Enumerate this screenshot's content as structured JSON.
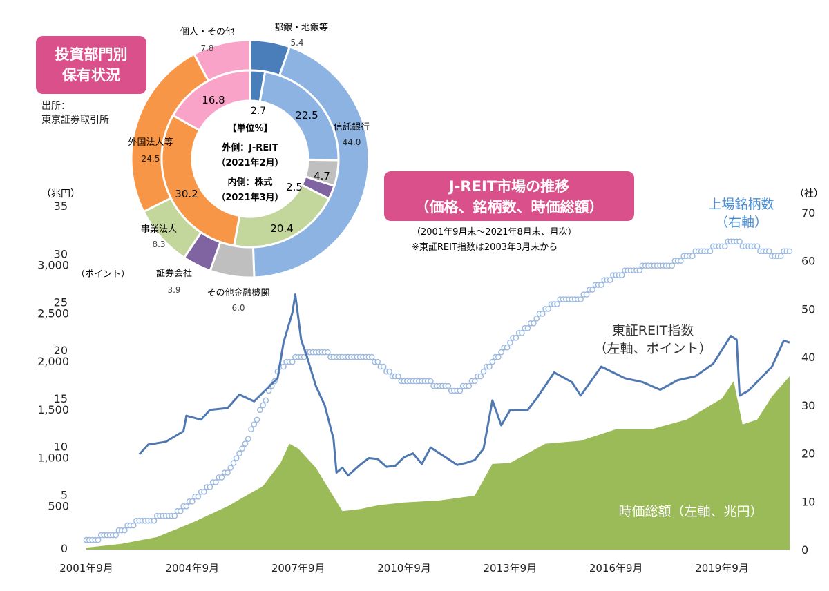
{
  "donut": {
    "title_lines": [
      "投資部門別",
      "保有状況"
    ],
    "source_lines": [
      "出所：",
      "東京証券取引所"
    ],
    "center_lines": [
      "【単位%】",
      "外側：J-REIT",
      "（2021年2月）",
      "内側：株式",
      "（2021年3月）"
    ],
    "colors": {
      "tosgin": "#4a7ebb",
      "shintaku": "#8db3e2",
      "sonota_kinyu": "#bfbfbf",
      "shoken": "#8064a2",
      "jigyo": "#c3d69b",
      "gaikoku": "#f79646",
      "kojin": "#f9a3c8"
    },
    "outer_labels": [
      {
        "name": "都銀・地銀等",
        "value": "5.4"
      },
      {
        "name": "信託銀行",
        "value": "44.0"
      },
      {
        "name": "その他金融機関",
        "value": "6.0"
      },
      {
        "name": "証券会社",
        "value": "3.9"
      },
      {
        "name": "事業法人",
        "value": "8.3"
      },
      {
        "name": "外国法人等",
        "value": "24.5"
      },
      {
        "name": "個人・その他",
        "value": "7.8"
      }
    ],
    "inner_labels": [
      "2.7",
      "22.5",
      "4.7",
      "2.5",
      "20.4",
      "30.2",
      "16.8"
    ]
  },
  "chart_titles": {
    "main_lines": [
      "J-REIT市場の推移",
      "（価格、銘柄数、時価総額）"
    ],
    "subtitle": "（2001年9月末～2021年8月末、月次）",
    "note": "※東証REIT指数は2003年3月末から"
  },
  "axes": {
    "left_unit": "（兆円）",
    "left_index_unit": "（ポイント）",
    "right_unit": "（社）",
    "left_outer_ticks": [
      "0",
      "5",
      "10",
      "15",
      "20",
      "25",
      "30",
      "35"
    ],
    "left_inner_ticks": [
      "500",
      "1,000",
      "1,500",
      "2,000",
      "2,500",
      "3,000"
    ],
    "right_ticks": [
      "0",
      "10",
      "20",
      "30",
      "40",
      "50",
      "60",
      "70"
    ],
    "x_ticks": [
      "2001年9月",
      "2004年9月",
      "2007年9月",
      "2010年9月",
      "2013年9月",
      "2016年9月",
      "2019年9月"
    ]
  },
  "series_labels": {
    "listed_lines": [
      "上場銘柄数",
      "（右軸）"
    ],
    "index_lines": [
      "東証REIT指数",
      "（左軸、ポイント）"
    ],
    "marketcap": "時価総額（左軸、兆円）"
  },
  "colors": {
    "index": "#4f77b0",
    "listed": "#9ab8e0",
    "marketcap": "#9bbb59",
    "title_box": "#d9508a"
  },
  "chart_data": {
    "type": "line",
    "x_range": [
      "2001-09",
      "2021-08"
    ],
    "y_left_range": [
      0,
      35
    ],
    "y_index_range": [
      0,
      3000
    ],
    "y_right_range": [
      0,
      70
    ],
    "series": [
      {
        "name": "東証REIT指数",
        "axis": "left-index",
        "points": [
          [
            "2003-03",
            990
          ],
          [
            "2003-06",
            1090
          ],
          [
            "2003-12",
            1120
          ],
          [
            "2004-06",
            1230
          ],
          [
            "2004-07",
            1390
          ],
          [
            "2004-12",
            1350
          ],
          [
            "2005-03",
            1450
          ],
          [
            "2005-09",
            1470
          ],
          [
            "2006-01",
            1610
          ],
          [
            "2006-06",
            1540
          ],
          [
            "2006-12",
            1720
          ],
          [
            "2007-02",
            1780
          ],
          [
            "2007-04",
            2150
          ],
          [
            "2007-07",
            2460
          ],
          [
            "2007-08",
            2650
          ],
          [
            "2007-10",
            2180
          ],
          [
            "2007-12",
            2000
          ],
          [
            "2008-03",
            1700
          ],
          [
            "2008-06",
            1500
          ],
          [
            "2008-09",
            1150
          ],
          [
            "2008-10",
            800
          ],
          [
            "2008-12",
            850
          ],
          [
            "2009-02",
            770
          ],
          [
            "2009-06",
            880
          ],
          [
            "2009-09",
            950
          ],
          [
            "2009-12",
            940
          ],
          [
            "2010-03",
            860
          ],
          [
            "2010-06",
            870
          ],
          [
            "2010-09",
            960
          ],
          [
            "2010-12",
            1000
          ],
          [
            "2011-03",
            890
          ],
          [
            "2011-06",
            1060
          ],
          [
            "2011-12",
            940
          ],
          [
            "2012-03",
            880
          ],
          [
            "2012-06",
            900
          ],
          [
            "2012-09",
            930
          ],
          [
            "2012-12",
            1050
          ],
          [
            "2013-03",
            1550
          ],
          [
            "2013-06",
            1290
          ],
          [
            "2013-09",
            1450
          ],
          [
            "2014-03",
            1450
          ],
          [
            "2014-06",
            1570
          ],
          [
            "2014-12",
            1840
          ],
          [
            "2015-06",
            1740
          ],
          [
            "2015-09",
            1600
          ],
          [
            "2016-04",
            1900
          ],
          [
            "2016-12",
            1780
          ],
          [
            "2017-06",
            1740
          ],
          [
            "2017-12",
            1660
          ],
          [
            "2018-06",
            1760
          ],
          [
            "2018-12",
            1800
          ],
          [
            "2019-06",
            1930
          ],
          [
            "2019-12",
            2220
          ],
          [
            "2020-02",
            2180
          ],
          [
            "2020-03",
            1600
          ],
          [
            "2020-06",
            1650
          ],
          [
            "2021-02",
            1900
          ],
          [
            "2021-06",
            2170
          ],
          [
            "2021-08",
            2150
          ]
        ]
      },
      {
        "name": "上場銘柄数",
        "axis": "right",
        "points": [
          [
            "2001-09",
            2
          ],
          [
            "2002-06",
            3
          ],
          [
            "2003-03",
            6
          ],
          [
            "2004-03",
            7
          ],
          [
            "2004-09",
            10
          ],
          [
            "2005-03",
            13
          ],
          [
            "2005-09",
            16
          ],
          [
            "2006-03",
            22
          ],
          [
            "2006-09",
            30
          ],
          [
            "2007-03",
            38
          ],
          [
            "2007-09",
            40
          ],
          [
            "2008-03",
            41
          ],
          [
            "2008-12",
            40
          ],
          [
            "2009-09",
            40
          ],
          [
            "2010-03",
            37
          ],
          [
            "2010-09",
            35
          ],
          [
            "2011-03",
            35
          ],
          [
            "2011-09",
            34
          ],
          [
            "2012-03",
            33
          ],
          [
            "2012-09",
            35
          ],
          [
            "2013-03",
            39
          ],
          [
            "2013-09",
            43
          ],
          [
            "2014-03",
            46
          ],
          [
            "2014-09",
            50
          ],
          [
            "2015-03",
            52
          ],
          [
            "2015-09",
            52
          ],
          [
            "2016-03",
            55
          ],
          [
            "2016-09",
            57
          ],
          [
            "2017-03",
            58
          ],
          [
            "2017-09",
            59
          ],
          [
            "2018-03",
            59
          ],
          [
            "2018-09",
            61
          ],
          [
            "2019-03",
            62
          ],
          [
            "2019-09",
            63
          ],
          [
            "2020-01",
            64
          ],
          [
            "2020-06",
            63
          ],
          [
            "2020-12",
            62
          ],
          [
            "2021-03",
            61
          ],
          [
            "2021-08",
            62
          ]
        ]
      },
      {
        "name": "時価総額（左軸、兆円）",
        "axis": "left",
        "type": "area",
        "points": [
          [
            "2001-09",
            0.2
          ],
          [
            "2002-09",
            0.6
          ],
          [
            "2003-09",
            1.3
          ],
          [
            "2004-09",
            2.8
          ],
          [
            "2005-09",
            4.5
          ],
          [
            "2006-09",
            6.6
          ],
          [
            "2007-03",
            9.0
          ],
          [
            "2007-06",
            11.0
          ],
          [
            "2007-09",
            10.5
          ],
          [
            "2008-03",
            8.5
          ],
          [
            "2008-09",
            5.5
          ],
          [
            "2008-12",
            4.0
          ],
          [
            "2009-06",
            4.2
          ],
          [
            "2009-12",
            4.6
          ],
          [
            "2010-09",
            4.9
          ],
          [
            "2011-09",
            5.1
          ],
          [
            "2012-09",
            5.6
          ],
          [
            "2013-03",
            8.9
          ],
          [
            "2013-09",
            9.0
          ],
          [
            "2014-09",
            11.0
          ],
          [
            "2015-09",
            11.3
          ],
          [
            "2016-09",
            12.5
          ],
          [
            "2017-09",
            12.5
          ],
          [
            "2018-09",
            13.5
          ],
          [
            "2019-09",
            15.7
          ],
          [
            "2020-01",
            17.5
          ],
          [
            "2020-04",
            13.0
          ],
          [
            "2020-09",
            13.5
          ],
          [
            "2021-02",
            15.9
          ],
          [
            "2021-08",
            18.0
          ]
        ]
      }
    ]
  }
}
